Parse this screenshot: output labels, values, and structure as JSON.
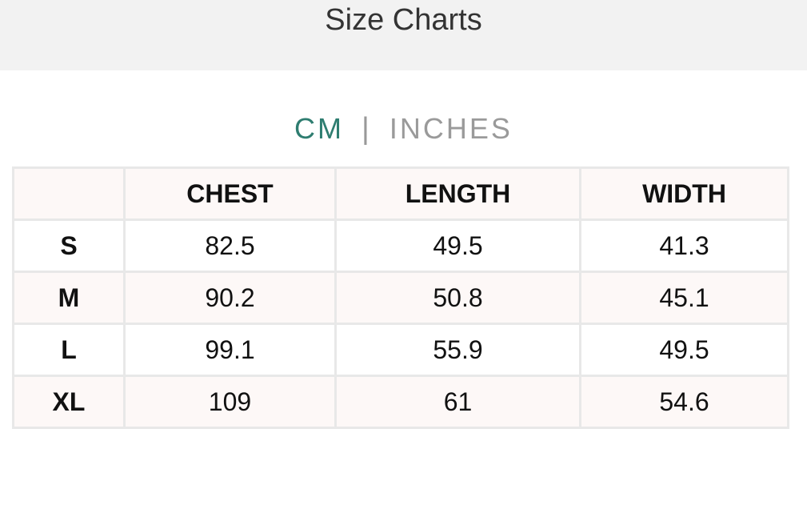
{
  "header": {
    "title": "Size Charts"
  },
  "units": {
    "active": "CM",
    "separator": "|",
    "inactive": "INCHES",
    "active_color": "#2e7d70"
  },
  "table": {
    "columns": [
      "",
      "CHEST",
      "LENGTH",
      "WIDTH"
    ],
    "rows": [
      {
        "size": "S",
        "chest": "82.5",
        "length": "49.5",
        "width": "41.3"
      },
      {
        "size": "M",
        "chest": "90.2",
        "length": "50.8",
        "width": "45.1"
      },
      {
        "size": "L",
        "chest": "99.1",
        "length": "55.9",
        "width": "49.5"
      },
      {
        "size": "XL",
        "chest": "109",
        "length": "61",
        "width": "54.6"
      }
    ]
  }
}
